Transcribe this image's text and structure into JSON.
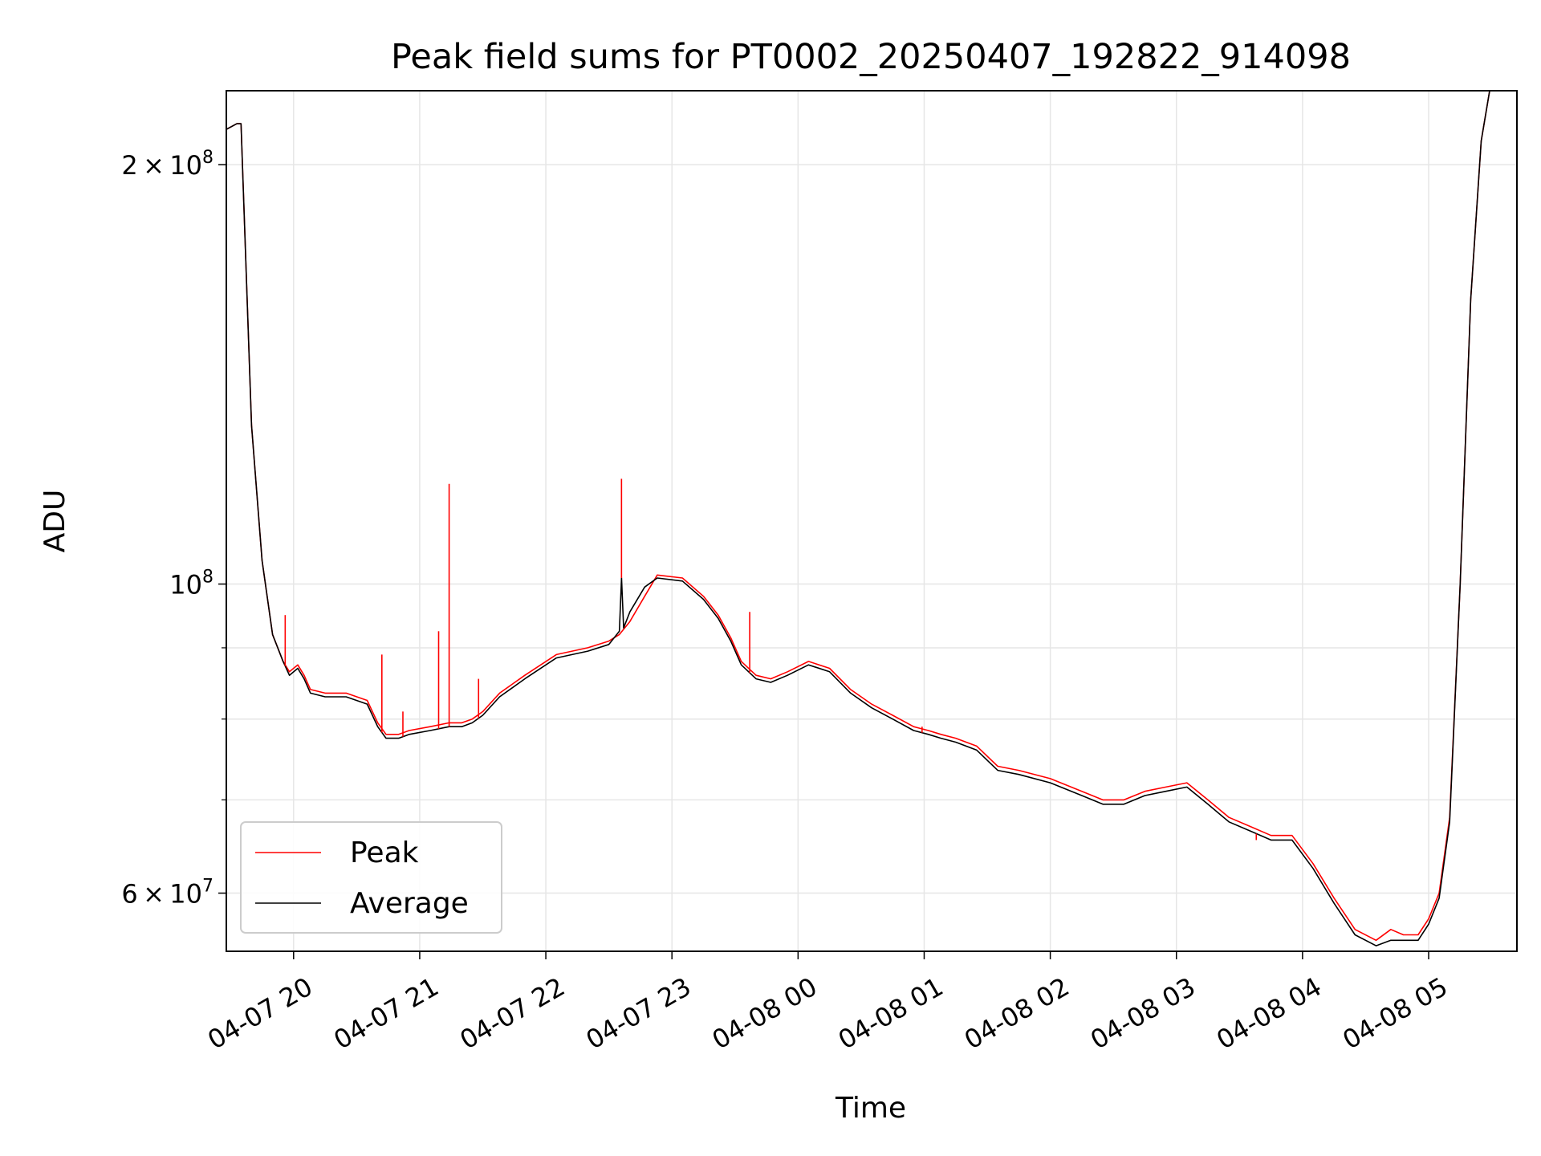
{
  "chart_data": {
    "type": "line",
    "title": "Peak field sums for PT0002_20250407_192822_914098",
    "xlabel": "Time",
    "ylabel": "ADU",
    "yscale": "log",
    "xlim": [
      "2025-04-07T19:28:00",
      "2025-04-08T05:42:00"
    ],
    "ylim": [
      54500000,
      226000000
    ],
    "grid": true,
    "legend_position": "lower-left",
    "x_ticks": [
      {
        "value": "2025-04-07T20:00:00",
        "label": "04-07 20"
      },
      {
        "value": "2025-04-07T21:00:00",
        "label": "04-07 21"
      },
      {
        "value": "2025-04-07T22:00:00",
        "label": "04-07 22"
      },
      {
        "value": "2025-04-07T23:00:00",
        "label": "04-07 23"
      },
      {
        "value": "2025-04-08T00:00:00",
        "label": "04-08 00"
      },
      {
        "value": "2025-04-08T01:00:00",
        "label": "04-08 01"
      },
      {
        "value": "2025-04-08T02:00:00",
        "label": "04-08 02"
      },
      {
        "value": "2025-04-08T03:00:00",
        "label": "04-08 03"
      },
      {
        "value": "2025-04-08T04:00:00",
        "label": "04-08 04"
      },
      {
        "value": "2025-04-08T05:00:00",
        "label": "04-08 05"
      }
    ],
    "y_major_ticks": [
      {
        "value": 60000000,
        "mantissa": "6",
        "exp": "7",
        "label": "6 × 10^7"
      },
      {
        "value": 100000000,
        "mantissa": "",
        "exp": "8",
        "label": "10^8"
      },
      {
        "value": 200000000,
        "mantissa": "2",
        "exp": "8",
        "label": "2 × 10^8"
      }
    ],
    "y_minor_ticks": [
      70000000,
      80000000,
      90000000
    ],
    "series": [
      {
        "name": "Peak",
        "color": "#ff0000",
        "x": [
          "2025-04-07T19:28:00",
          "2025-04-07T19:33:00",
          "2025-04-07T19:35:00",
          "2025-04-07T19:40:00",
          "2025-04-07T19:45:00",
          "2025-04-07T19:50:00",
          "2025-04-07T19:55:00",
          "2025-04-07T19:58:00",
          "2025-04-07T20:02:00",
          "2025-04-07T20:05:00",
          "2025-04-07T20:08:00",
          "2025-04-07T20:15:00",
          "2025-04-07T20:25:00",
          "2025-04-07T20:35:00",
          "2025-04-07T20:40:00",
          "2025-04-07T20:44:00",
          "2025-04-07T20:50:00",
          "2025-04-07T20:55:00",
          "2025-04-07T21:05:00",
          "2025-04-07T21:14:00",
          "2025-04-07T21:20:00",
          "2025-04-07T21:25:00",
          "2025-04-07T21:30:00",
          "2025-04-07T21:38:00",
          "2025-04-07T21:50:00",
          "2025-04-07T22:05:00",
          "2025-04-07T22:20:00",
          "2025-04-07T22:30:00",
          "2025-04-07T22:35:00",
          "2025-04-07T22:40:00",
          "2025-04-07T22:47:00",
          "2025-04-07T22:53:00",
          "2025-04-07T23:05:00",
          "2025-04-07T23:15:00",
          "2025-04-07T23:22:00",
          "2025-04-07T23:28:00",
          "2025-04-07T23:33:00",
          "2025-04-07T23:40:00",
          "2025-04-07T23:47:00",
          "2025-04-07T23:55:00",
          "2025-04-08T00:05:00",
          "2025-04-08T00:15:00",
          "2025-04-08T00:25:00",
          "2025-04-08T00:35:00",
          "2025-04-08T00:45:00",
          "2025-04-08T00:55:00",
          "2025-04-08T01:02:00",
          "2025-04-08T01:08:00",
          "2025-04-08T01:15:00",
          "2025-04-08T01:25:00",
          "2025-04-08T01:35:00",
          "2025-04-08T01:45:00",
          "2025-04-08T02:00:00",
          "2025-04-08T02:15:00",
          "2025-04-08T02:25:00",
          "2025-04-08T02:35:00",
          "2025-04-08T02:45:00",
          "2025-04-08T02:55:00",
          "2025-04-08T03:05:00",
          "2025-04-08T03:15:00",
          "2025-04-08T03:25:00",
          "2025-04-08T03:35:00",
          "2025-04-08T03:45:00",
          "2025-04-08T03:55:00",
          "2025-04-08T04:05:00",
          "2025-04-08T04:15:00",
          "2025-04-08T04:25:00",
          "2025-04-08T04:35:00",
          "2025-04-08T04:42:00",
          "2025-04-08T04:48:00",
          "2025-04-08T04:55:00",
          "2025-04-08T05:00:00",
          "2025-04-08T05:05:00",
          "2025-04-08T05:10:00",
          "2025-04-08T05:15:00",
          "2025-04-08T05:20:00",
          "2025-04-08T05:25:00",
          "2025-04-08T05:29:00",
          "2025-04-08T05:42:00"
        ],
        "values": [
          212000000,
          214000000,
          214000000,
          130000000,
          104000000,
          92000000,
          88000000,
          86500000,
          87500000,
          86000000,
          84000000,
          83500000,
          83500000,
          82500000,
          79500000,
          78000000,
          78000000,
          78500000,
          79000000,
          79500000,
          79500000,
          80000000,
          81000000,
          83500000,
          86000000,
          89000000,
          90000000,
          91000000,
          92000000,
          94000000,
          98000000,
          101500000,
          101000000,
          98000000,
          95000000,
          91500000,
          88000000,
          86000000,
          85500000,
          86500000,
          88000000,
          87000000,
          84000000,
          82000000,
          80500000,
          79000000,
          78500000,
          78000000,
          77500000,
          76500000,
          74000000,
          73500000,
          72500000,
          71000000,
          70000000,
          70000000,
          71000000,
          71500000,
          72000000,
          70000000,
          68000000,
          67000000,
          66000000,
          66000000,
          63000000,
          59500000,
          56500000,
          55500000,
          56500000,
          56000000,
          56000000,
          57500000,
          60000000,
          68000000,
          100000000,
          160000000,
          208000000,
          226000000,
          226000000
        ],
        "spikes": [
          {
            "x": "2025-04-07T19:56:00",
            "value": 95000000
          },
          {
            "x": "2025-04-07T20:42:00",
            "value": 89000000
          },
          {
            "x": "2025-04-07T20:52:00",
            "value": 81000000
          },
          {
            "x": "2025-04-07T21:09:00",
            "value": 92500000
          },
          {
            "x": "2025-04-07T21:14:00",
            "value": 118000000
          },
          {
            "x": "2025-04-07T21:28:00",
            "value": 85500000
          },
          {
            "x": "2025-04-07T22:36:00",
            "value": 119000000
          },
          {
            "x": "2025-04-07T23:37:00",
            "value": 95500000
          },
          {
            "x": "2025-04-08T00:59:00",
            "value": 79000000
          },
          {
            "x": "2025-04-08T03:38:00",
            "value": 65500000
          }
        ]
      },
      {
        "name": "Average",
        "color": "#000000",
        "x": [
          "2025-04-07T19:28:00",
          "2025-04-07T19:33:00",
          "2025-04-07T19:35:00",
          "2025-04-07T19:40:00",
          "2025-04-07T19:45:00",
          "2025-04-07T19:50:00",
          "2025-04-07T19:55:00",
          "2025-04-07T19:58:00",
          "2025-04-07T20:02:00",
          "2025-04-07T20:05:00",
          "2025-04-07T20:08:00",
          "2025-04-07T20:15:00",
          "2025-04-07T20:25:00",
          "2025-04-07T20:35:00",
          "2025-04-07T20:40:00",
          "2025-04-07T20:44:00",
          "2025-04-07T20:50:00",
          "2025-04-07T20:55:00",
          "2025-04-07T21:05:00",
          "2025-04-07T21:14:00",
          "2025-04-07T21:20:00",
          "2025-04-07T21:25:00",
          "2025-04-07T21:30:00",
          "2025-04-07T21:38:00",
          "2025-04-07T21:50:00",
          "2025-04-07T22:05:00",
          "2025-04-07T22:20:00",
          "2025-04-07T22:30:00",
          "2025-04-07T22:35:00",
          "2025-04-07T22:36:00",
          "2025-04-07T22:37:00",
          "2025-04-07T22:40:00",
          "2025-04-07T22:47:00",
          "2025-04-07T22:53:00",
          "2025-04-07T23:05:00",
          "2025-04-07T23:15:00",
          "2025-04-07T23:22:00",
          "2025-04-07T23:28:00",
          "2025-04-07T23:33:00",
          "2025-04-07T23:40:00",
          "2025-04-07T23:47:00",
          "2025-04-07T23:55:00",
          "2025-04-08T00:05:00",
          "2025-04-08T00:15:00",
          "2025-04-08T00:25:00",
          "2025-04-08T00:35:00",
          "2025-04-08T00:45:00",
          "2025-04-08T00:55:00",
          "2025-04-08T01:02:00",
          "2025-04-08T01:08:00",
          "2025-04-08T01:15:00",
          "2025-04-08T01:25:00",
          "2025-04-08T01:35:00",
          "2025-04-08T01:45:00",
          "2025-04-08T02:00:00",
          "2025-04-08T02:15:00",
          "2025-04-08T02:25:00",
          "2025-04-08T02:35:00",
          "2025-04-08T02:45:00",
          "2025-04-08T02:55:00",
          "2025-04-08T03:05:00",
          "2025-04-08T03:15:00",
          "2025-04-08T03:25:00",
          "2025-04-08T03:35:00",
          "2025-04-08T03:45:00",
          "2025-04-08T03:55:00",
          "2025-04-08T04:05:00",
          "2025-04-08T04:15:00",
          "2025-04-08T04:25:00",
          "2025-04-08T04:35:00",
          "2025-04-08T04:42:00",
          "2025-04-08T04:48:00",
          "2025-04-08T04:55:00",
          "2025-04-08T05:00:00",
          "2025-04-08T05:05:00",
          "2025-04-08T05:10:00",
          "2025-04-08T05:15:00",
          "2025-04-08T05:20:00",
          "2025-04-08T05:25:00",
          "2025-04-08T05:29:00",
          "2025-04-08T05:42:00"
        ],
        "values": [
          212000000,
          214000000,
          214000000,
          130000000,
          104000000,
          92000000,
          88000000,
          86000000,
          87000000,
          85500000,
          83500000,
          83000000,
          83000000,
          82000000,
          79000000,
          77500000,
          77500000,
          78000000,
          78500000,
          79000000,
          79000000,
          79500000,
          80500000,
          83000000,
          85500000,
          88500000,
          89500000,
          90500000,
          92500000,
          101000000,
          93000000,
          95500000,
          99500000,
          101000000,
          100500000,
          97500000,
          94500000,
          91000000,
          87500000,
          85500000,
          85000000,
          86000000,
          87500000,
          86500000,
          83500000,
          81500000,
          80000000,
          78500000,
          78000000,
          77500000,
          77000000,
          76000000,
          73500000,
          73000000,
          72000000,
          70500000,
          69500000,
          69500000,
          70500000,
          71000000,
          71500000,
          69500000,
          67500000,
          66500000,
          65500000,
          65500000,
          62500000,
          59000000,
          56000000,
          55000000,
          55500000,
          55500000,
          55500000,
          57000000,
          59500000,
          67500000,
          100000000,
          160000000,
          208000000,
          226000000,
          226000000
        ]
      }
    ]
  }
}
